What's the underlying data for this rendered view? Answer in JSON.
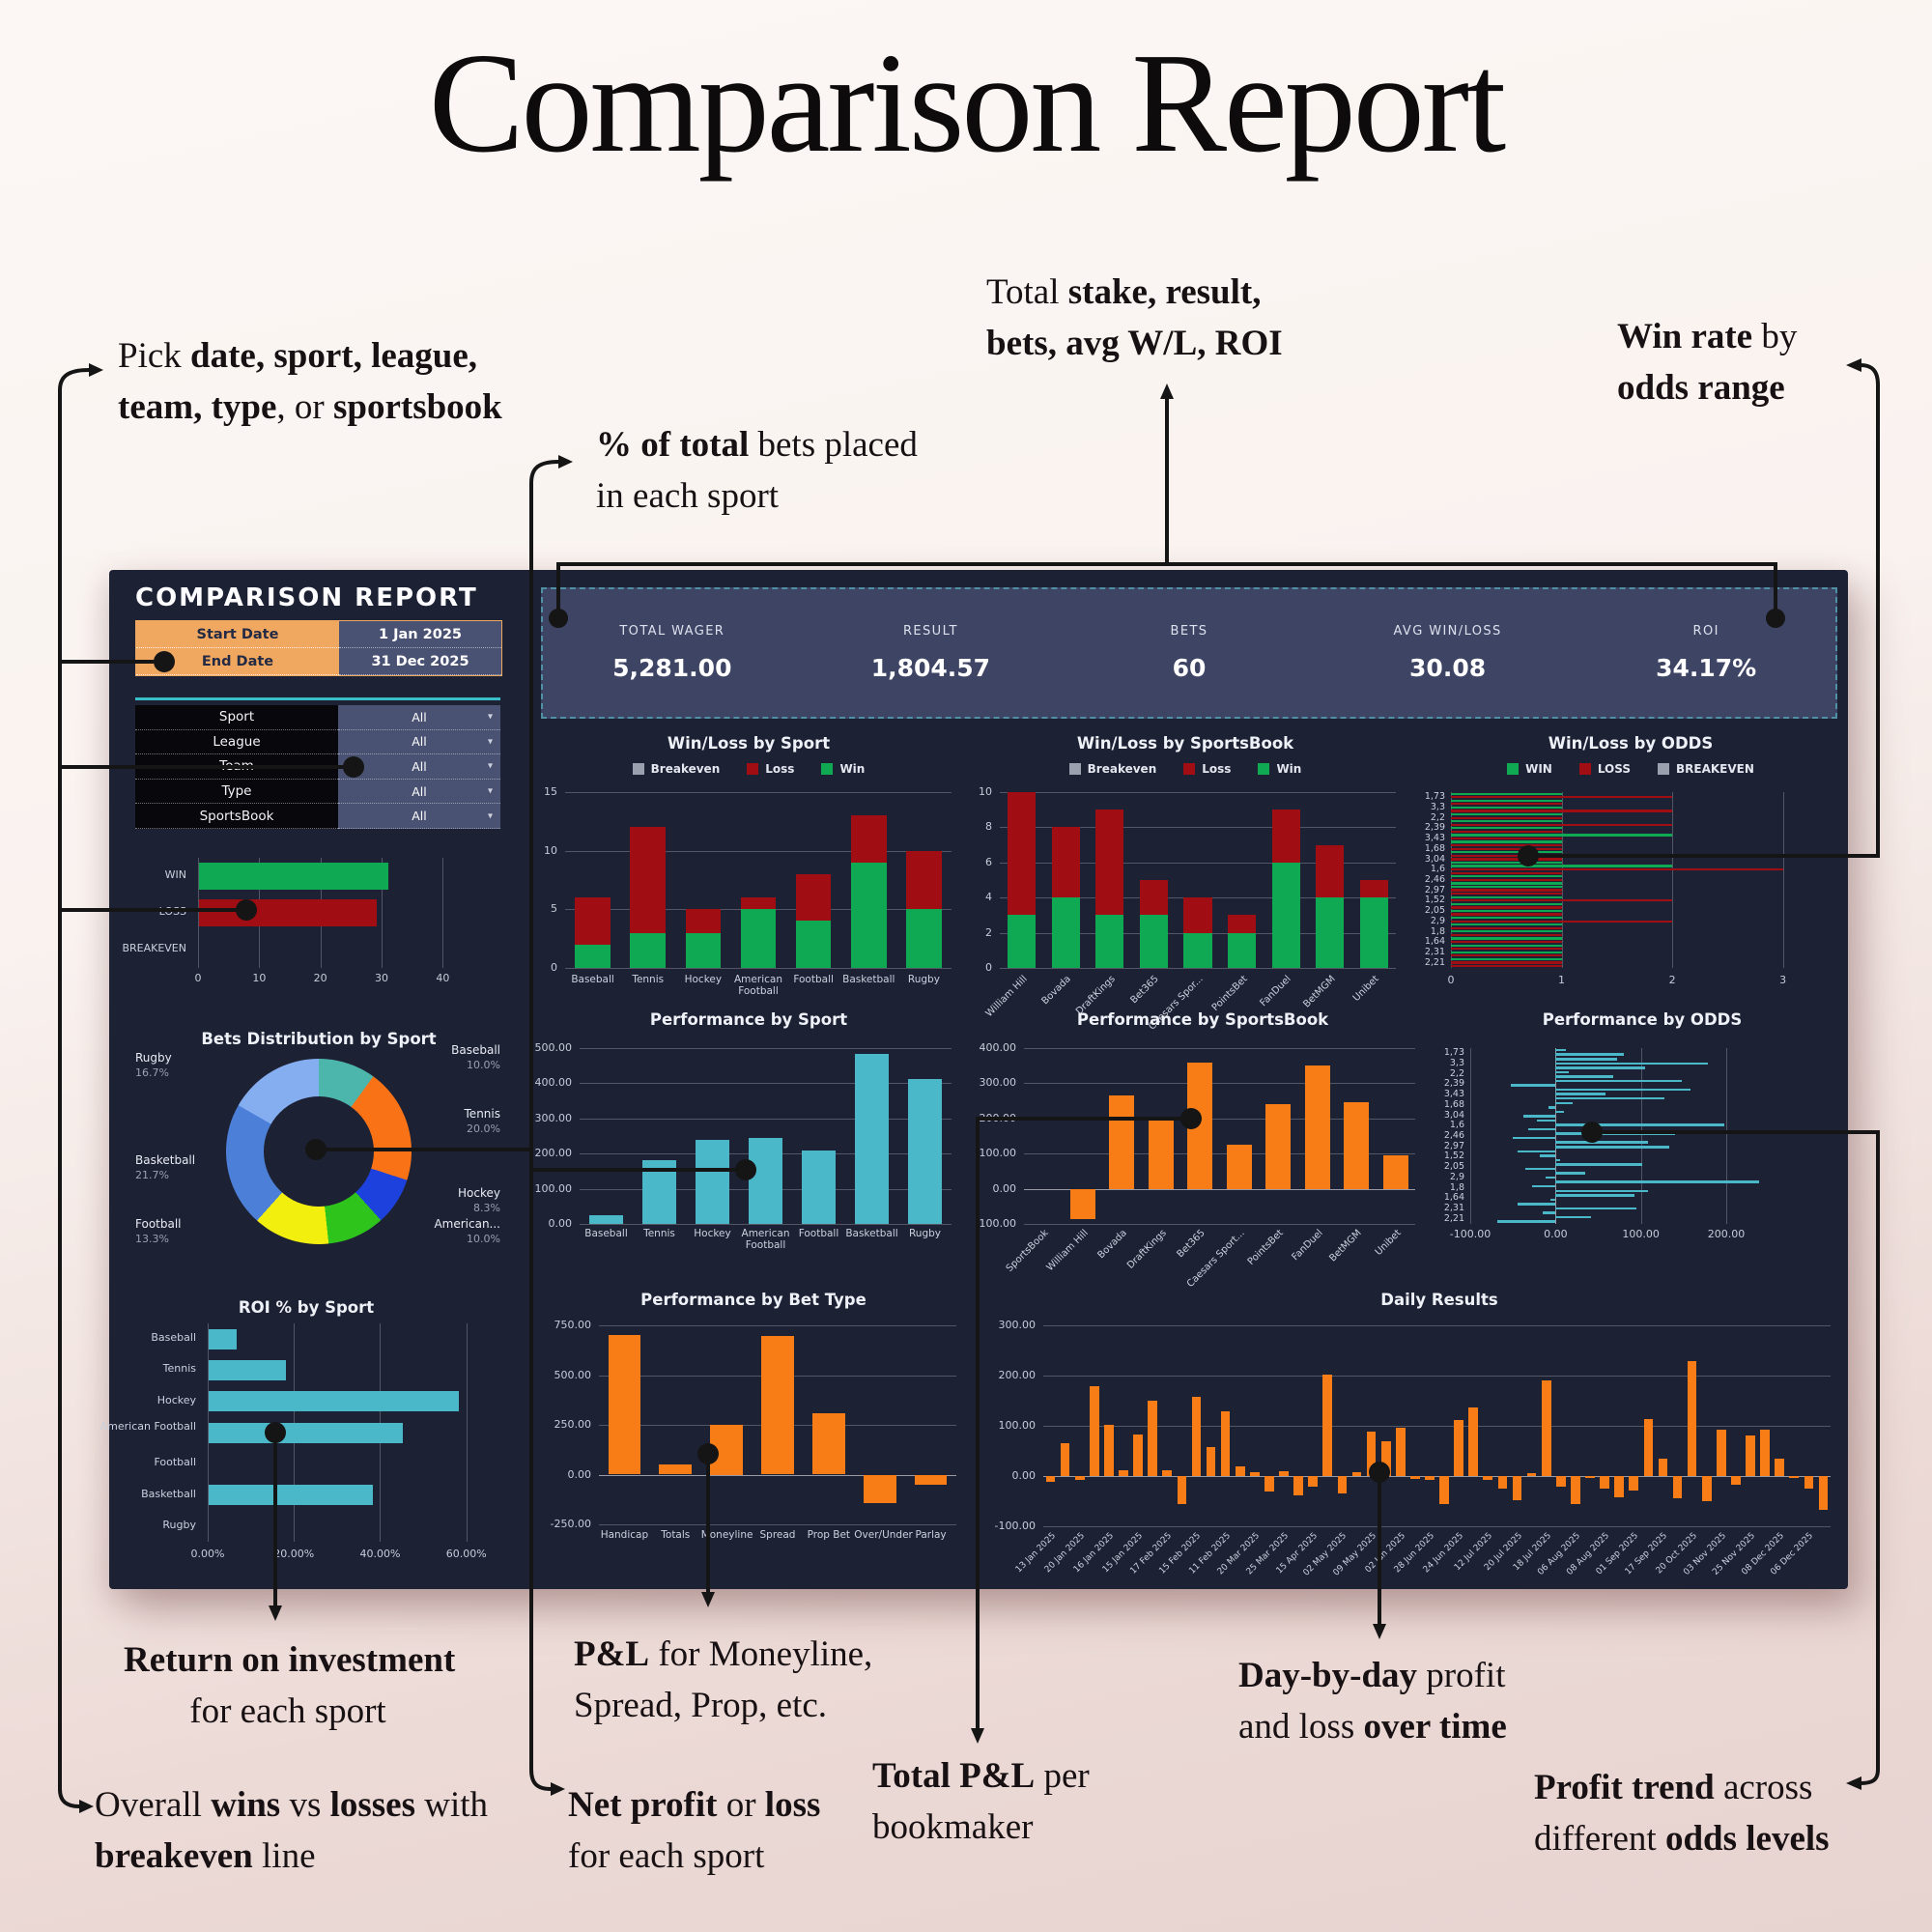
{
  "page": {
    "title": "Comparison Report"
  },
  "annotations": [
    {
      "id": "pick-filters",
      "parts": [
        {
          "t": "Pick "
        },
        {
          "t": "date, sport, league,",
          "b": true
        },
        {
          "br": true
        },
        {
          "t": "team, type",
          "b": true
        },
        {
          "t": ", or "
        },
        {
          "t": "sportsbook",
          "b": true
        }
      ]
    },
    {
      "id": "pct-total",
      "parts": [
        {
          "t": "% of total",
          "b": true
        },
        {
          "t": " bets placed"
        },
        {
          "br": true
        },
        {
          "t": "in each sport"
        }
      ]
    },
    {
      "id": "total-stats",
      "parts": [
        {
          "t": "Total "
        },
        {
          "t": "stake, result,",
          "b": true
        },
        {
          "br": true
        },
        {
          "t": "bets, avg W/L, ROI",
          "b": true
        }
      ]
    },
    {
      "id": "win-rate",
      "parts": [
        {
          "t": "Win rate",
          "b": true
        },
        {
          "t": " by"
        },
        {
          "br": true
        },
        {
          "t": "odds range",
          "b": true
        }
      ]
    },
    {
      "id": "roi",
      "parts": [
        {
          "t": "Return on investment",
          "b": true
        },
        {
          "br": true
        },
        {
          "t": "for each sport"
        }
      ]
    },
    {
      "id": "pl-bettype",
      "parts": [
        {
          "t": "P&L",
          "b": true
        },
        {
          "t": " for Moneyline,"
        },
        {
          "br": true
        },
        {
          "t": "Spread, Prop, etc."
        }
      ]
    },
    {
      "id": "day-by-day",
      "parts": [
        {
          "t": "Day-by-day",
          "b": true
        },
        {
          "t": " profit"
        },
        {
          "br": true
        },
        {
          "t": "and loss "
        },
        {
          "t": "over time",
          "b": true
        }
      ]
    },
    {
      "id": "overall-wl",
      "parts": [
        {
          "t": "Overall "
        },
        {
          "t": "wins",
          "b": true
        },
        {
          "t": " vs "
        },
        {
          "t": "losses",
          "b": true
        },
        {
          "t": " with"
        },
        {
          "br": true
        },
        {
          "t": "breakeven",
          "b": true
        },
        {
          "t": " line"
        }
      ]
    },
    {
      "id": "net-profit",
      "parts": [
        {
          "t": "Net profit",
          "b": true
        },
        {
          "t": " or "
        },
        {
          "t": "loss",
          "b": true
        },
        {
          "br": true
        },
        {
          "t": "for each sport"
        }
      ]
    },
    {
      "id": "total-pl",
      "parts": [
        {
          "t": "Total P&L",
          "b": true
        },
        {
          "t": " per"
        },
        {
          "br": true
        },
        {
          "t": "bookmaker"
        }
      ]
    },
    {
      "id": "profit-trend",
      "parts": [
        {
          "t": "Profit trend",
          "b": true
        },
        {
          "t": " across"
        },
        {
          "br": true
        },
        {
          "t": "different "
        },
        {
          "t": "odds levels",
          "b": true
        }
      ]
    }
  ],
  "dashboard": {
    "header": "COMPARISON REPORT",
    "date_filters": [
      {
        "label": "Start Date",
        "value": "1 Jan 2025"
      },
      {
        "label": "End Date",
        "value": "31 Dec 2025"
      }
    ],
    "filters": [
      {
        "label": "Sport",
        "value": "All"
      },
      {
        "label": "League",
        "value": "All"
      },
      {
        "label": "Team",
        "value": "All"
      },
      {
        "label": "Type",
        "value": "All"
      },
      {
        "label": "SportsBook",
        "value": "All"
      }
    ],
    "stats": [
      {
        "label": "TOTAL WAGER",
        "value": "5,281.00"
      },
      {
        "label": "RESULT",
        "value": "1,804.57"
      },
      {
        "label": "BETS",
        "value": "60"
      },
      {
        "label": "AVG WIN/LOSS",
        "value": "30.08"
      },
      {
        "label": "ROI",
        "value": "34.17%"
      }
    ]
  },
  "colors": {
    "win": "#0fa953",
    "loss": "#a00d12",
    "breakeven": "#9aa0ae",
    "teal": "#4bb8c9",
    "orange": "#f97d16",
    "accent": "#38bec9",
    "dashboard_bg": "#1d2134",
    "statbar_bg": "#3e4564",
    "filter_orange": "#f0a75f"
  },
  "chart_data": [
    {
      "id": "wl_overall",
      "type": "bar",
      "orientation": "horizontal",
      "title": "",
      "categories": [
        "WIN",
        "LOSS",
        "BREAKEVEN"
      ],
      "values": [
        31,
        29,
        0
      ],
      "bar_colors": [
        "#0fa953",
        "#a00d12",
        "#9aa0ae"
      ],
      "xticks": [
        "0",
        "10",
        "20",
        "30",
        "40"
      ],
      "xtick_vals": [
        0,
        10,
        20,
        30,
        40
      ],
      "xlim": [
        0,
        45
      ]
    },
    {
      "id": "bets_dist",
      "type": "pie",
      "title": "Bets Distribution by Sport",
      "slices": [
        {
          "label": "Baseball",
          "pct": 10.0,
          "color": "#4db6ac"
        },
        {
          "label": "Tennis",
          "pct": 20.0,
          "color": "#f97316"
        },
        {
          "label": "Hockey",
          "pct": 8.3,
          "color": "#1d41dd"
        },
        {
          "label": "American...",
          "pct": 10.0,
          "color": "#2ec41c"
        },
        {
          "label": "Football",
          "pct": 13.3,
          "color": "#f2ef0f"
        },
        {
          "label": "Basketball",
          "pct": 21.7,
          "color": "#4c80d8"
        },
        {
          "label": "Rugby",
          "pct": 16.7,
          "color": "#85aef0"
        }
      ]
    },
    {
      "id": "roi_sport",
      "type": "bar",
      "orientation": "horizontal",
      "title": "ROI % by Sport",
      "categories": [
        "Baseball",
        "Tennis",
        "Hockey",
        "American Football",
        "Football",
        "Basketball",
        "Rugby"
      ],
      "values": [
        6.5,
        18,
        58,
        45,
        0,
        38,
        0
      ],
      "color": "#4bb8c9",
      "xticks": [
        "0.00%",
        "20.00%",
        "40.00%",
        "60.00%"
      ],
      "xtick_vals": [
        0,
        20,
        40,
        60
      ],
      "xlim": [
        0,
        65
      ]
    },
    {
      "id": "wl_sport",
      "type": "stacked-bar",
      "title": "Win/Loss by Sport",
      "legend": [
        {
          "label": "Breakeven",
          "color": "#9aa0ae"
        },
        {
          "label": "Loss",
          "color": "#a00d12"
        },
        {
          "label": "Win",
          "color": "#0fa953"
        }
      ],
      "categories": [
        "Baseball",
        "Tennis",
        "Hockey",
        "American Football",
        "Football",
        "Basketball",
        "Rugby"
      ],
      "series": [
        {
          "name": "Win",
          "color": "#0fa953",
          "values": [
            2,
            3,
            3,
            5,
            4,
            9,
            5
          ]
        },
        {
          "name": "Loss",
          "color": "#a00d12",
          "values": [
            4,
            9,
            2,
            1,
            4,
            4,
            5
          ]
        }
      ],
      "yticks": [
        "0",
        "5",
        "10",
        "15"
      ],
      "ytick_vals": [
        0,
        5,
        10,
        15
      ],
      "ylim": [
        0,
        15
      ]
    },
    {
      "id": "wl_sportsbook",
      "type": "stacked-bar",
      "title": "Win/Loss by SportsBook",
      "legend": [
        {
          "label": "Breakeven",
          "color": "#9aa0ae"
        },
        {
          "label": "Loss",
          "color": "#a00d12"
        },
        {
          "label": "Win",
          "color": "#0fa953"
        }
      ],
      "categories": [
        "William Hill",
        "Bovada",
        "DraftKings",
        "Bet365",
        "Caesars Spor...",
        "PointsBet",
        "FanDuel",
        "BetMGM",
        "Unibet"
      ],
      "series": [
        {
          "name": "Win",
          "color": "#0fa953",
          "values": [
            3,
            4,
            3,
            3,
            2,
            2,
            6,
            4,
            4
          ]
        },
        {
          "name": "Loss",
          "color": "#a00d12",
          "values": [
            7,
            4,
            6,
            2,
            2,
            1,
            3,
            3,
            1
          ]
        }
      ],
      "yticks": [
        "0",
        "2",
        "4",
        "6",
        "8",
        "10"
      ],
      "ytick_vals": [
        0,
        2,
        4,
        6,
        8,
        10
      ],
      "ylim": [
        0,
        10
      ],
      "rotate_labels": true
    },
    {
      "id": "wl_odds",
      "type": "odds-winloss",
      "title": "Win/Loss by ODDS",
      "legend": [
        {
          "label": "WIN",
          "color": "#0fa953"
        },
        {
          "label": "LOSS",
          "color": "#a00d12"
        },
        {
          "label": "BREAKEVEN",
          "color": "#9aa0ae"
        }
      ],
      "row_labels": [
        "1,73",
        "3,3",
        "2,2",
        "2,39",
        "3,43",
        "1,68",
        "3,04",
        "1,6",
        "2,46",
        "2,97",
        "1,52",
        "2,05",
        "2,9",
        "1,8",
        "1,64",
        "2,31",
        "2,21"
      ],
      "rows": [
        {
          "c": "w",
          "v": 1
        },
        {
          "c": "l",
          "v": 2
        },
        {
          "c": "w",
          "v": 1
        },
        {
          "c": "l",
          "v": 1
        },
        {
          "c": "w",
          "v": 1
        },
        {
          "c": "l",
          "v": 2
        },
        {
          "c": "w",
          "v": 1
        },
        {
          "c": "l",
          "v": 1
        },
        {
          "c": "w",
          "v": 1
        },
        {
          "c": "l",
          "v": 2
        },
        {
          "c": "w",
          "v": 1
        },
        {
          "c": "l",
          "v": 1
        },
        {
          "c": "w",
          "v": 2
        },
        {
          "c": "l",
          "v": 1
        },
        {
          "c": "w",
          "v": 1
        },
        {
          "c": "l",
          "v": 1
        },
        {
          "c": "l",
          "v": 1
        },
        {
          "c": "w",
          "v": 1
        },
        {
          "c": "l",
          "v": 1
        },
        {
          "c": "l",
          "v": 1
        },
        {
          "c": "w",
          "v": 1
        },
        {
          "c": "w",
          "v": 2
        },
        {
          "c": "l",
          "v": 3
        },
        {
          "c": "l",
          "v": 1
        },
        {
          "c": "w",
          "v": 1
        },
        {
          "c": "l",
          "v": 1
        },
        {
          "c": "w",
          "v": 1
        },
        {
          "c": "w",
          "v": 1
        },
        {
          "c": "l",
          "v": 1
        },
        {
          "c": "l",
          "v": 1
        },
        {
          "c": "w",
          "v": 1
        },
        {
          "c": "l",
          "v": 2
        },
        {
          "c": "w",
          "v": 1
        },
        {
          "c": "l",
          "v": 1
        },
        {
          "c": "w",
          "v": 1
        },
        {
          "c": "l",
          "v": 1
        },
        {
          "c": "w",
          "v": 1
        },
        {
          "c": "l",
          "v": 2
        },
        {
          "c": "w",
          "v": 1
        },
        {
          "c": "l",
          "v": 1
        },
        {
          "c": "w",
          "v": 1
        },
        {
          "c": "l",
          "v": 1
        },
        {
          "c": "w",
          "v": 1
        },
        {
          "c": "l",
          "v": 1
        },
        {
          "c": "w",
          "v": 1
        },
        {
          "c": "l",
          "v": 1
        },
        {
          "c": "w",
          "v": 1
        },
        {
          "c": "l",
          "v": 1
        },
        {
          "c": "w",
          "v": 1
        },
        {
          "c": "l",
          "v": 1
        },
        {
          "c": "l",
          "v": 1
        }
      ],
      "xticks": [
        "0",
        "1",
        "2",
        "3"
      ],
      "xtick_vals": [
        0,
        1,
        2,
        3
      ],
      "xlim": [
        0,
        3.3
      ]
    },
    {
      "id": "perf_sport",
      "type": "bar",
      "title": "Performance by Sport",
      "categories": [
        "Baseball",
        "Tennis",
        "Hockey",
        "American Football",
        "Football",
        "Basketball",
        "Rugby"
      ],
      "values": [
        25,
        180,
        240,
        245,
        210,
        483,
        413
      ],
      "color": "#4bb8c9",
      "yticks": [
        "0.00",
        "100.00",
        "200.00",
        "300.00",
        "400.00",
        "500.00"
      ],
      "ytick_vals": [
        0,
        100,
        200,
        300,
        400,
        500
      ],
      "ylim": [
        0,
        500
      ]
    },
    {
      "id": "perf_sportsbook",
      "type": "bar",
      "title": "Performance by SportsBook",
      "categories": [
        "SportsBook",
        "William Hill",
        "Bovada",
        "DraftKings",
        "Bet365",
        "Caesars Sport...",
        "PointsBet",
        "FanDuel",
        "BetMGM",
        "Unibet"
      ],
      "values": [
        0,
        -85,
        265,
        200,
        360,
        125,
        240,
        350,
        245,
        95
      ],
      "color": "#f97d16",
      "yticks": [
        "-100.00",
        "0.00",
        "100.00",
        "200.00",
        "300.00",
        "400.00"
      ],
      "ytick_vals": [
        -100,
        0,
        100,
        200,
        300,
        400
      ],
      "ylim": [
        -100,
        400
      ],
      "rotate_labels": true
    },
    {
      "id": "perf_odds",
      "type": "odds-perf",
      "title": "Performance by ODDS",
      "row_labels": [
        "1,73",
        "3,3",
        "2,2",
        "2,39",
        "3,43",
        "1,68",
        "3,04",
        "1,6",
        "2,46",
        "2,97",
        "1,52",
        "2,05",
        "2,9",
        "1,8",
        "1,64",
        "2,31",
        "2,21"
      ],
      "values": [
        12,
        80,
        72,
        178,
        105,
        15,
        68,
        148,
        -52,
        158,
        58,
        128,
        20,
        -8,
        10,
        -38,
        -22,
        198,
        -32,
        140,
        -50,
        108,
        133,
        -45,
        -18,
        5,
        102,
        -35,
        35,
        -12,
        238,
        -28,
        108,
        92,
        -6,
        -45,
        95,
        -15,
        42,
        -68
      ],
      "color": "#4bb8c9",
      "xticks": [
        "-100.00",
        "0.00",
        "100.00",
        "200.00"
      ],
      "xtick_vals": [
        -100,
        0,
        100,
        200
      ],
      "xlim": [
        -100,
        320
      ]
    },
    {
      "id": "perf_bettype",
      "type": "bar",
      "title": "Performance by Bet Type",
      "categories": [
        "Handicap",
        "Totals",
        "Moneyline",
        "Spread",
        "Prop Bet",
        "Over/Under",
        "Parlay"
      ],
      "values": [
        700,
        50,
        250,
        695,
        310,
        -145,
        -50
      ],
      "color": "#f97d16",
      "yticks": [
        "-250.00",
        "0.00",
        "250.00",
        "500.00",
        "750.00"
      ],
      "ytick_vals": [
        -250,
        0,
        250,
        500,
        750
      ],
      "ylim": [
        -250,
        750
      ]
    },
    {
      "id": "daily",
      "type": "bar",
      "title": "Daily Results",
      "categories": [
        "13 Jan 2025",
        "20 Jan 2025",
        "16 Jan 2025",
        "15 Jan 2025",
        "17 Feb 2025",
        "15 Feb 2025",
        "11 Feb 2025",
        "20 Mar 2025",
        "25 Mar 2025",
        "15 Apr 2025",
        "02 May 2025",
        "09 May 2025",
        "02 Jun 2025",
        "28 Jun 2025",
        "24 Jun 2025",
        "12 Jul 2025",
        "20 Jul 2025",
        "18 Jul 2025",
        "06 Aug 2025",
        "08 Aug 2025",
        "01 Sep 2025",
        "17 Sep 2025",
        "20 Oct 2025",
        "03 Nov 2025",
        "25 Nov 2025",
        "08 Dec 2025",
        "06 Dec 2025"
      ],
      "values": [
        -12,
        65,
        -8,
        178,
        102,
        12,
        82,
        150,
        12,
        -55,
        158,
        57,
        128,
        20,
        8,
        -30,
        10,
        -38,
        -22,
        202,
        -35,
        8,
        88,
        70,
        97,
        -5,
        -8,
        -55,
        112,
        137,
        -8,
        -25,
        -48,
        5,
        190,
        -22,
        -55,
        -4,
        -25,
        -42,
        -28,
        113,
        35,
        -45,
        228,
        -50,
        92,
        -18,
        80,
        92,
        35,
        -4,
        -25,
        -68
      ],
      "color": "#f97d16",
      "yticks": [
        "-100.00",
        "0.00",
        "100.00",
        "200.00",
        "300.00"
      ],
      "ytick_vals": [
        -100,
        0,
        100,
        200,
        300
      ],
      "ylim": [
        -100,
        300
      ],
      "rotate_labels": true,
      "label_every": 2
    }
  ]
}
